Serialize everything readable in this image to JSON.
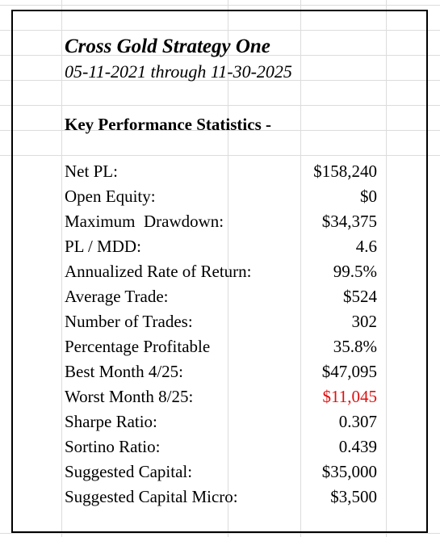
{
  "header": {
    "title": "Cross Gold Strategy One",
    "subtitle": "05-11-2021 through 11-30-2025"
  },
  "section": {
    "heading": "Key Performance Statistics -"
  },
  "table": {
    "rows": [
      {
        "label": "Net PL:",
        "value": "$158,240"
      },
      {
        "label": "Open Equity:",
        "value": "$0"
      },
      {
        "label": "Maximum  Drawdown:",
        "value": "$34,375"
      },
      {
        "label": "PL / MDD:",
        "value": "4.6"
      },
      {
        "label": "Annualized Rate of Return:",
        "value": "99.5%"
      },
      {
        "label": "Average Trade:",
        "value": "$524"
      },
      {
        "label": "Number of Trades:",
        "value": "302"
      },
      {
        "label": "Percentage Profitable",
        "value": "35.8%"
      },
      {
        "label": "Best Month 4/25:",
        "value": "$47,095"
      },
      {
        "label": "Worst Month 8/25:",
        "value": "$11,045",
        "color": "#e01010"
      },
      {
        "label": "Sharpe Ratio:",
        "value": "0.307"
      },
      {
        "label": "Sortino Ratio:",
        "value": "0.439"
      },
      {
        "label": "Suggested Capital:",
        "value": "$35,000"
      },
      {
        "label": "Suggested Capital Micro:",
        "value": "$3,500"
      }
    ]
  }
}
